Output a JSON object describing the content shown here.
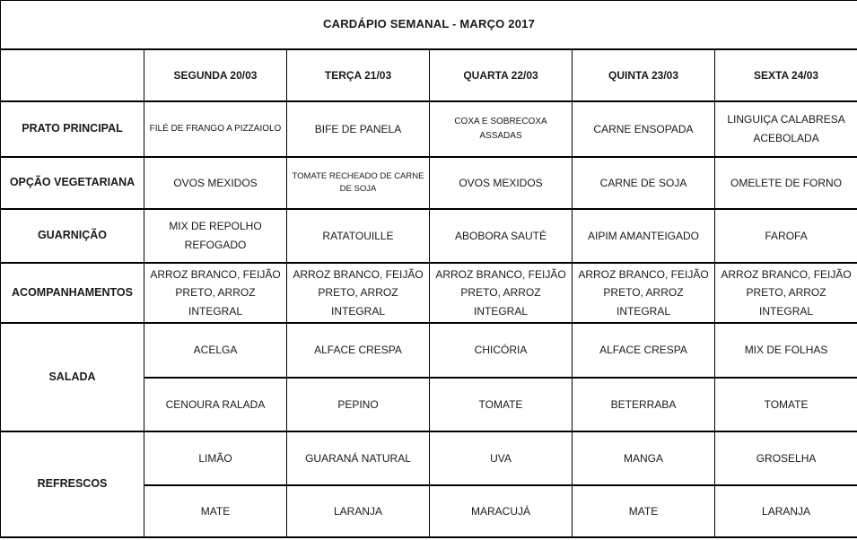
{
  "page": {
    "background": "#ffffff",
    "border_color": "#000000",
    "text_color": "#1a1a1a"
  },
  "table": {
    "title": "CARDÁPIO SEMANAL - MARÇO 2017",
    "corner": "",
    "day_headers": [
      "SEGUNDA 20/03",
      "TERÇA 21/03",
      "QUARTA 22/03",
      "QUINTA 23/03",
      "SEXTA 24/03"
    ],
    "rows": [
      {
        "label": "PRATO PRINCIPAL",
        "cells": [
          "FILÉ DE FRANGO A PIZZAIOLO",
          "BIFE DE PANELA",
          "COXA E SOBRECOXA ASSADAS",
          "CARNE ENSOPADA",
          "LINGUIÇA CALABRESA ACEBOLADA"
        ]
      },
      {
        "label": "OPÇÃO VEGETARIANA",
        "cells": [
          "OVOS MEXIDOS",
          "TOMATE RECHEADO DE CARNE DE SOJA",
          "OVOS MEXIDOS",
          "CARNE DE SOJA",
          "OMELETE DE FORNO"
        ]
      },
      {
        "label": "GUARNIÇÃO",
        "cells": [
          "MIX DE REPOLHO REFOGADO",
          "RATATOUILLE",
          "ABOBORA SAUTÉ",
          "AIPIM AMANTEIGADO",
          "FAROFA"
        ]
      },
      {
        "label": "ACOMPANHAMENTOS",
        "cells": [
          "ARROZ BRANCO, FEIJÃO PRETO, ARROZ INTEGRAL",
          "ARROZ BRANCO, FEIJÃO PRETO, ARROZ INTEGRAL",
          "ARROZ BRANCO, FEIJÃO PRETO, ARROZ INTEGRAL",
          "ARROZ BRANCO, FEIJÃO PRETO, ARROZ INTEGRAL",
          "ARROZ BRANCO, FEIJÃO PRETO, ARROZ INTEGRAL"
        ]
      },
      {
        "label": "SALADA",
        "subrows": [
          [
            "ACELGA",
            "ALFACE CRESPA",
            "CHICÓRIA",
            "ALFACE CRESPA",
            "MIX DE FOLHAS"
          ],
          [
            "CENOURA RALADA",
            "PEPINO",
            "TOMATE",
            "BETERRABA",
            "TOMATE"
          ]
        ]
      },
      {
        "label": "REFRESCOS",
        "subrows": [
          [
            "LIMÃO",
            "GUARANÁ NATURAL",
            "UVA",
            "MANGA",
            "GROSELHA"
          ],
          [
            "MATE",
            "LARANJA",
            "MARACUJÁ",
            "MATE",
            "LARANJA"
          ]
        ]
      }
    ]
  }
}
